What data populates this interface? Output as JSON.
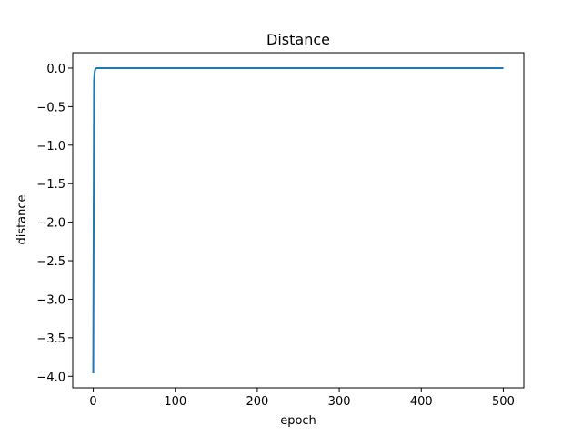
{
  "chart_data": {
    "type": "line",
    "title": "Distance",
    "xlabel": "epoch",
    "ylabel": "distance",
    "xlim": [
      -25,
      525
    ],
    "ylim": [
      -4.15,
      0.2
    ],
    "xticks": [
      0,
      100,
      200,
      300,
      400,
      500
    ],
    "xtick_labels": [
      "0",
      "100",
      "200",
      "300",
      "400",
      "500"
    ],
    "yticks": [
      0.0,
      -0.5,
      -1.0,
      -1.5,
      -2.0,
      -2.5,
      -3.0,
      -3.5,
      -4.0
    ],
    "ytick_labels": [
      "0.0",
      "−0.5",
      "−1.0",
      "−1.5",
      "−2.0",
      "−2.5",
      "−3.0",
      "−3.5",
      "−4.0"
    ],
    "grid": false,
    "series": [
      {
        "color": "#1f77b4",
        "x": [
          0,
          1,
          2,
          3,
          4,
          5,
          10,
          50,
          100,
          200,
          300,
          400,
          499
        ],
        "y": [
          -3.95,
          -0.15,
          -0.03,
          -0.01,
          0.0,
          0.0,
          0.0,
          0.0,
          0.0,
          0.0,
          0.0,
          0.0,
          0.0
        ]
      }
    ]
  }
}
